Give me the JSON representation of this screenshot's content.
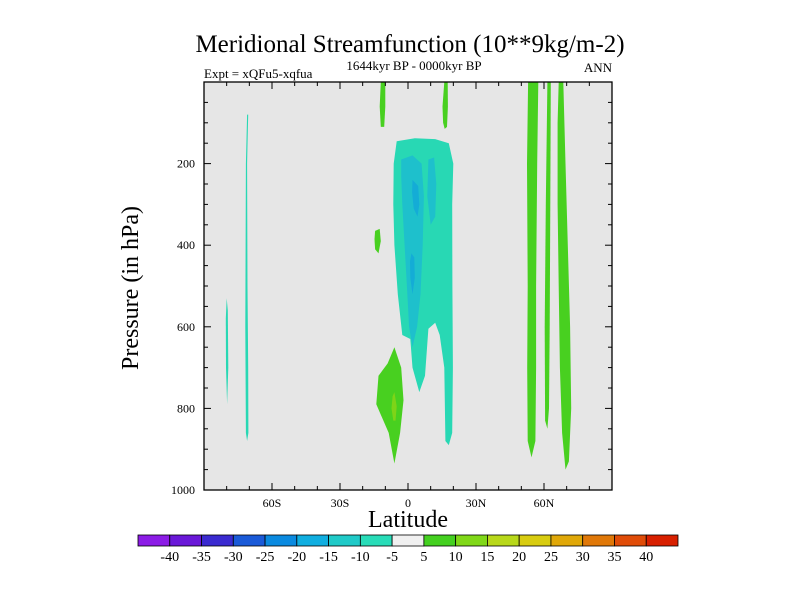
{
  "chart_data": {
    "type": "heatmap",
    "title": "Meridional Streamfunction (10**9kg/m-2)",
    "subtitle_left": "Expt = xQFu5-xqfua",
    "subtitle_center": "1644kyr BP - 0000kyr BP",
    "subtitle_right": "ANN",
    "xlabel": "Latitude",
    "ylabel": "Pressure (in hPa)",
    "xlim": [
      -90,
      90
    ],
    "ylim": [
      1000,
      0
    ],
    "x_ticks": [
      {
        "value": -60,
        "label": "60S"
      },
      {
        "value": -30,
        "label": "30S"
      },
      {
        "value": 0,
        "label": "0"
      },
      {
        "value": 30,
        "label": "30N"
      },
      {
        "value": 60,
        "label": "60N"
      }
    ],
    "y_ticks": [
      {
        "value": 200,
        "label": "200"
      },
      {
        "value": 400,
        "label": "400"
      },
      {
        "value": 600,
        "label": "600"
      },
      {
        "value": 800,
        "label": "800"
      },
      {
        "value": 1000,
        "label": "1000"
      }
    ],
    "background_color": "#e6e6e6",
    "colorbar": {
      "labels": [
        "-40",
        "-35",
        "-30",
        "-25",
        "-20",
        "-15",
        "-10",
        "-5",
        "5",
        "10",
        "15",
        "20",
        "25",
        "30",
        "35",
        "40"
      ],
      "colors": [
        "#8c1ce6",
        "#6a18d8",
        "#3a2ad0",
        "#1a5ad8",
        "#0a8ae0",
        "#10aee0",
        "#20cac8",
        "#28dcb8",
        "#f0f0f0",
        "#44d020",
        "#80d818",
        "#b8d81a",
        "#d8cc10",
        "#e0a808",
        "#e07808",
        "#e04c08",
        "#d82000"
      ]
    },
    "regions": [
      {
        "level": "-5",
        "color": "#28d8b4",
        "points": [
          [
            -71,
            80
          ],
          [
            -70.5,
            80
          ],
          [
            -71,
            200
          ],
          [
            -70.8,
            500
          ],
          [
            -70.5,
            700
          ],
          [
            -70.4,
            860
          ],
          [
            -71,
            880
          ],
          [
            -71.5,
            860
          ],
          [
            -71.8,
            600
          ],
          [
            -71.5,
            200
          ]
        ]
      },
      {
        "level": "-5",
        "color": "#28d8b4",
        "points": [
          [
            -80,
            530
          ],
          [
            -79.5,
            560
          ],
          [
            -79.3,
            700
          ],
          [
            -79.8,
            790
          ],
          [
            -80.3,
            700
          ],
          [
            -80.4,
            580
          ]
        ]
      },
      {
        "level": "-5",
        "color": "#28d8b4",
        "points": [
          [
            -5,
            145
          ],
          [
            3,
            138
          ],
          [
            12,
            140
          ],
          [
            18,
            150
          ],
          [
            20,
            200
          ],
          [
            19.5,
            300
          ],
          [
            19.6,
            500
          ],
          [
            19.8,
            700
          ],
          [
            19.5,
            860
          ],
          [
            18,
            890
          ],
          [
            16.5,
            880
          ],
          [
            16,
            700
          ],
          [
            14,
            620
          ],
          [
            12,
            590
          ],
          [
            9,
            605
          ],
          [
            7.5,
            720
          ],
          [
            5,
            760
          ],
          [
            2,
            700
          ],
          [
            1,
            630
          ],
          [
            -2.5,
            620
          ],
          [
            -4.5,
            520
          ],
          [
            -6,
            400
          ],
          [
            -6.5,
            300
          ],
          [
            -6.3,
            200
          ]
        ]
      },
      {
        "level": "-10",
        "color": "#1ec0cc",
        "points": [
          [
            -3,
            190
          ],
          [
            2,
            180
          ],
          [
            6,
            200
          ],
          [
            7,
            280
          ],
          [
            6.5,
            400
          ],
          [
            5.5,
            520
          ],
          [
            4,
            600
          ],
          [
            2,
            650
          ],
          [
            0.5,
            600
          ],
          [
            -0.5,
            500
          ],
          [
            -1.5,
            400
          ],
          [
            -2.5,
            300
          ],
          [
            -3,
            230
          ]
        ]
      },
      {
        "level": "-10",
        "color": "#1ec0cc",
        "points": [
          [
            9,
            190
          ],
          [
            11.5,
            185
          ],
          [
            12.5,
            250
          ],
          [
            12,
            330
          ],
          [
            10,
            350
          ],
          [
            8.5,
            280
          ]
        ]
      },
      {
        "level": "-15",
        "color": "#14acd6",
        "points": [
          [
            2,
            240
          ],
          [
            4.5,
            255
          ],
          [
            5,
            300
          ],
          [
            4.2,
            330
          ],
          [
            2.5,
            310
          ],
          [
            1.8,
            270
          ]
        ]
      },
      {
        "level": "-15",
        "color": "#14acd6",
        "points": [
          [
            1.5,
            420
          ],
          [
            2.8,
            430
          ],
          [
            3,
            480
          ],
          [
            2,
            520
          ],
          [
            1,
            480
          ],
          [
            0.9,
            440
          ]
        ]
      },
      {
        "level": "5",
        "color": "#48d020",
        "points": [
          [
            -12,
            0
          ],
          [
            -10,
            0
          ],
          [
            -10,
            60
          ],
          [
            -10.5,
            110
          ],
          [
            -12,
            110
          ],
          [
            -12.5,
            60
          ]
        ]
      },
      {
        "level": "5",
        "color": "#48d020",
        "points": [
          [
            -14.5,
            365
          ],
          [
            -12.5,
            360
          ],
          [
            -12,
            390
          ],
          [
            -13,
            420
          ],
          [
            -14.5,
            410
          ],
          [
            -14.8,
            385
          ]
        ]
      },
      {
        "level": "5",
        "color": "#48d020",
        "points": [
          [
            -6,
            650
          ],
          [
            -3,
            700
          ],
          [
            -2,
            780
          ],
          [
            -3.5,
            860
          ],
          [
            -6,
            935
          ],
          [
            -8.5,
            860
          ],
          [
            -14,
            790
          ],
          [
            -13,
            720
          ],
          [
            -9,
            690
          ]
        ]
      },
      {
        "level": "10",
        "color": "#7ed418",
        "points": [
          [
            -6,
            760
          ],
          [
            -5,
            795
          ],
          [
            -5.5,
            830
          ],
          [
            -6.5,
            830
          ],
          [
            -7.3,
            800
          ],
          [
            -6.8,
            770
          ]
        ]
      },
      {
        "level": "5",
        "color": "#48d020",
        "points": [
          [
            16,
            0
          ],
          [
            17.5,
            0
          ],
          [
            17.6,
            60
          ],
          [
            17.2,
            110
          ],
          [
            16.2,
            115
          ],
          [
            15.5,
            100
          ],
          [
            15.2,
            60
          ],
          [
            15.6,
            30
          ]
        ]
      },
      {
        "level": "5",
        "color": "#48d020",
        "points": [
          [
            53,
            0
          ],
          [
            57.5,
            0
          ],
          [
            57,
            200
          ],
          [
            56.5,
            500
          ],
          [
            56.5,
            700
          ],
          [
            56.2,
            880
          ],
          [
            54.5,
            920
          ],
          [
            52.8,
            880
          ],
          [
            52.6,
            700
          ],
          [
            52.8,
            500
          ],
          [
            52.5,
            200
          ]
        ]
      },
      {
        "level": "5",
        "color": "#48d020",
        "points": [
          [
            61.5,
            0
          ],
          [
            63,
            0
          ],
          [
            62.8,
            300
          ],
          [
            62.5,
            600
          ],
          [
            62.2,
            800
          ],
          [
            61.5,
            850
          ],
          [
            60.5,
            830
          ],
          [
            60.3,
            600
          ],
          [
            60.8,
            300
          ]
        ]
      },
      {
        "level": "5",
        "color": "#48d020",
        "points": [
          [
            66.5,
            0
          ],
          [
            68.5,
            0
          ],
          [
            69.5,
            200
          ],
          [
            70.5,
            400
          ],
          [
            71.5,
            600
          ],
          [
            72,
            800
          ],
          [
            71,
            930
          ],
          [
            69.5,
            950
          ],
          [
            68,
            860
          ],
          [
            67,
            700
          ],
          [
            66.5,
            500
          ],
          [
            66,
            300
          ],
          [
            66,
            100
          ]
        ]
      }
    ]
  }
}
